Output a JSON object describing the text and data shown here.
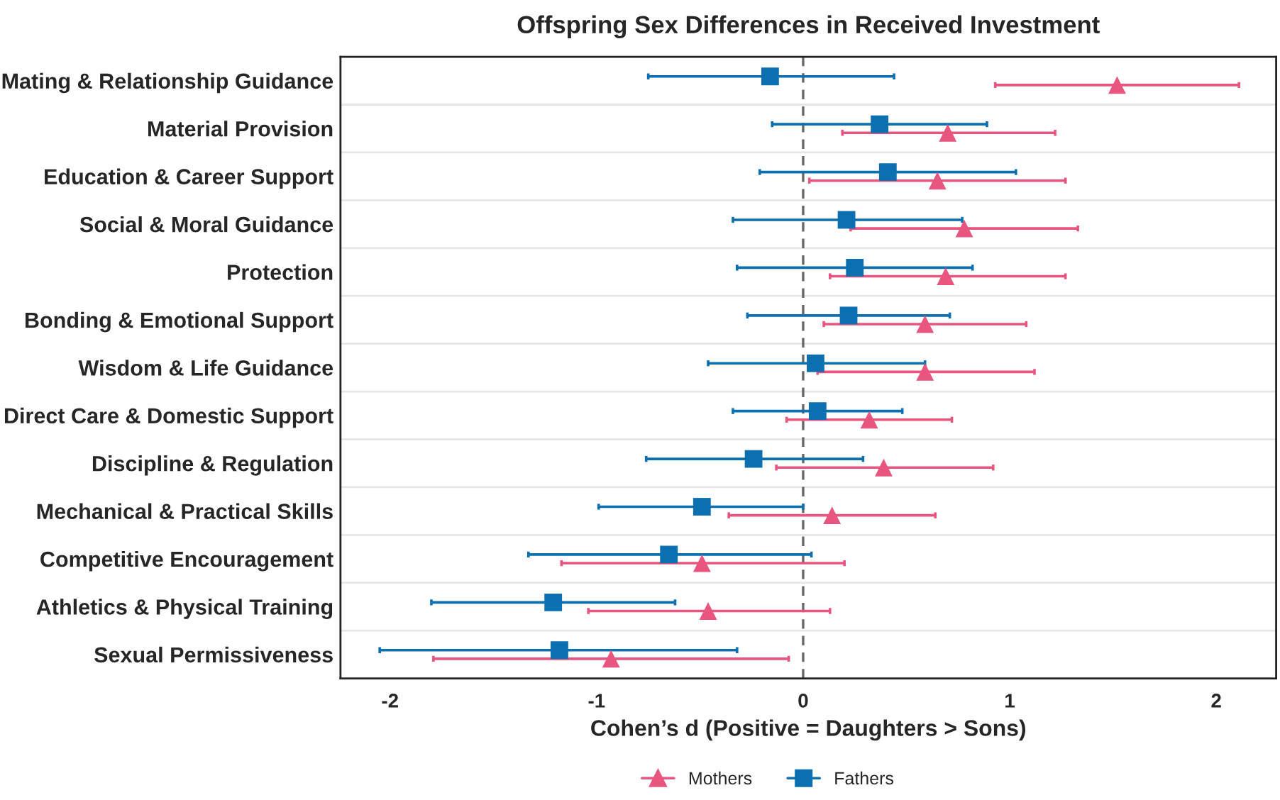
{
  "chart_data": {
    "type": "scatter",
    "orientation": "horizontal",
    "title": "Offspring Sex Differences in Received Investment",
    "xlabel": "Cohen’s d (Positive = Daughters > Sons)",
    "categories": [
      "Mating & Relationship Guidance",
      "Material Provision",
      "Education & Career Support",
      "Social & Moral Guidance",
      "Protection",
      "Bonding & Emotional Support",
      "Wisdom & Life Guidance",
      "Direct Care & Domestic Support",
      "Discipline & Regulation",
      "Mechanical & Practical Skills",
      "Competitive Encouragement",
      "Athletics & Physical Training",
      "Sexual Permissiveness"
    ],
    "series": [
      {
        "name": "Mothers",
        "color": "#e8567f",
        "marker": "triangle",
        "values": [
          1.52,
          0.7,
          0.65,
          0.78,
          0.69,
          0.59,
          0.59,
          0.32,
          0.39,
          0.14,
          -0.49,
          -0.46,
          -0.93
        ],
        "errors": [
          [
            0.93,
            2.11
          ],
          [
            0.19,
            1.22
          ],
          [
            0.03,
            1.27
          ],
          [
            0.23,
            1.33
          ],
          [
            0.13,
            1.27
          ],
          [
            0.1,
            1.08
          ],
          [
            0.07,
            1.12
          ],
          [
            -0.08,
            0.72
          ],
          [
            -0.13,
            0.92
          ],
          [
            -0.36,
            0.64
          ],
          [
            -1.17,
            0.2
          ],
          [
            -1.04,
            0.13
          ],
          [
            -1.79,
            -0.07
          ]
        ]
      },
      {
        "name": "Fathers",
        "color": "#0b6fb0",
        "marker": "square",
        "values": [
          -0.16,
          0.37,
          0.41,
          0.21,
          0.25,
          0.22,
          0.06,
          0.07,
          -0.24,
          -0.49,
          -0.65,
          -1.21,
          -1.18
        ],
        "errors": [
          [
            -0.75,
            0.44
          ],
          [
            -0.15,
            0.89
          ],
          [
            -0.21,
            1.03
          ],
          [
            -0.34,
            0.77
          ],
          [
            -0.32,
            0.82
          ],
          [
            -0.27,
            0.71
          ],
          [
            -0.46,
            0.59
          ],
          [
            -0.34,
            0.48
          ],
          [
            -0.76,
            0.29
          ],
          [
            -0.99,
            0.0
          ],
          [
            -1.33,
            0.04
          ],
          [
            -1.8,
            -0.62
          ],
          [
            -2.05,
            -0.32
          ]
        ]
      }
    ],
    "xlim": [
      -2.24,
      2.29
    ],
    "xticks": [
      -2,
      -1,
      0,
      1,
      2
    ],
    "ref_lines": [
      {
        "axis": "x",
        "value": 0,
        "color": "#666666",
        "line_style": "dashed"
      }
    ],
    "grid": "y",
    "legend": "bottom"
  }
}
